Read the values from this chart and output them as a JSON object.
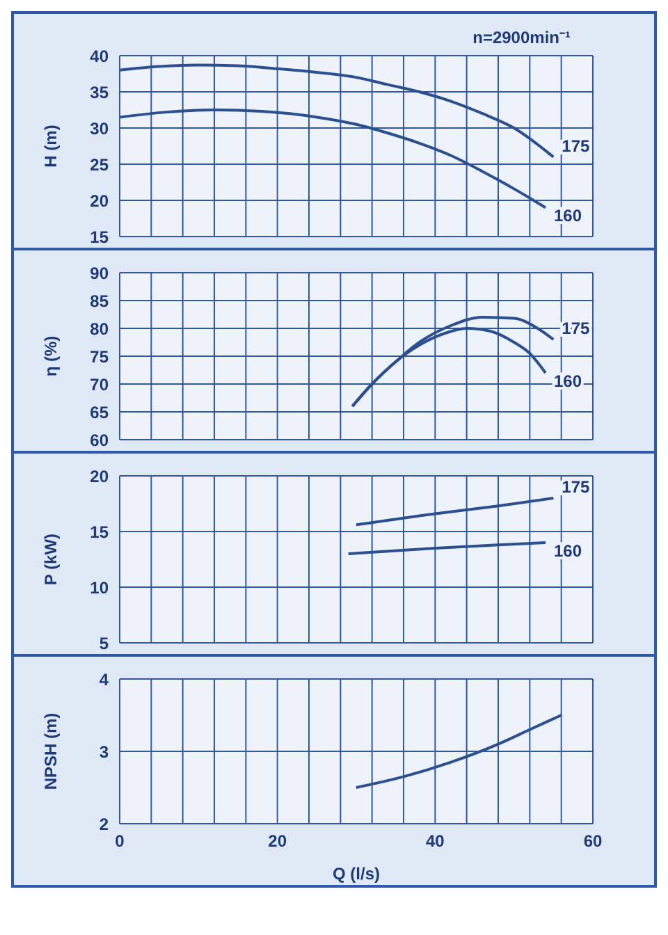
{
  "chart_data": [
    {
      "type": "line",
      "ylabel": "H (m)",
      "annotations": [
        "n=2900min⁻¹"
      ],
      "xlim": [
        0,
        60
      ],
      "xticks": [
        0,
        {
          "value": 4,
          "label": null
        },
        {
          "value": 8,
          "label": null
        },
        {
          "value": 12,
          "label": null
        },
        {
          "value": 16,
          "label": null
        },
        20,
        {
          "value": 24,
          "label": null
        },
        {
          "value": 28,
          "label": null
        },
        {
          "value": 32,
          "label": null
        },
        {
          "value": 36,
          "label": null
        },
        40,
        {
          "value": 44,
          "label": null
        },
        {
          "value": 48,
          "label": null
        },
        {
          "value": 52,
          "label": null
        },
        {
          "value": 56,
          "label": null
        },
        60
      ],
      "ylim": [
        15,
        40
      ],
      "yticks": [
        15,
        20,
        25,
        30,
        35,
        40
      ],
      "grid": true,
      "tick_labels": "y",
      "marker": "none",
      "series": [
        {
          "name": "175",
          "color": "#2b4f8f",
          "x": [
            0,
            5,
            10,
            15,
            20,
            25,
            30,
            34,
            38,
            42,
            46,
            50,
            55
          ],
          "values": [
            38,
            38.5,
            38.7,
            38.6,
            38.2,
            37.7,
            37,
            36,
            35,
            33.7,
            32,
            30,
            26
          ]
        },
        {
          "name": "160",
          "color": "#2b4f8f",
          "x": [
            0,
            6,
            12,
            18,
            25,
            30,
            34,
            38,
            42,
            46,
            50,
            54
          ],
          "values": [
            31.5,
            32.2,
            32.5,
            32.3,
            31.5,
            30.5,
            29.3,
            27.9,
            26.2,
            24,
            21.6,
            19
          ]
        }
      ]
    },
    {
      "type": "line",
      "ylabel": "η (%)",
      "xlim": [
        0,
        60
      ],
      "xticks": [
        0,
        {
          "value": 4,
          "label": null
        },
        {
          "value": 8,
          "label": null
        },
        {
          "value": 12,
          "label": null
        },
        {
          "value": 16,
          "label": null
        },
        20,
        {
          "value": 24,
          "label": null
        },
        {
          "value": 28,
          "label": null
        },
        {
          "value": 32,
          "label": null
        },
        {
          "value": 36,
          "label": null
        },
        40,
        {
          "value": 44,
          "label": null
        },
        {
          "value": 48,
          "label": null
        },
        {
          "value": 52,
          "label": null
        },
        {
          "value": 56,
          "label": null
        },
        60
      ],
      "ylim": [
        60,
        90
      ],
      "yticks": [
        60,
        65,
        70,
        75,
        80,
        85,
        90
      ],
      "grid": true,
      "tick_labels": "y",
      "marker": "none",
      "series": [
        {
          "name": "175",
          "color": "#2b4f8f",
          "x": [
            29.5,
            32,
            35,
            38,
            42,
            46,
            50,
            53,
            55
          ],
          "values": [
            66,
            70,
            74,
            77.5,
            80.5,
            82,
            81.8,
            80,
            78
          ]
        },
        {
          "name": "160",
          "color": "#2b4f8f",
          "x": [
            29.5,
            32,
            35,
            38,
            41,
            44,
            47,
            50,
            52,
            54
          ],
          "values": [
            66,
            70,
            74,
            77,
            79,
            80,
            79.5,
            77.5,
            75.5,
            72
          ]
        }
      ]
    },
    {
      "type": "line",
      "ylabel": "P (kW)",
      "xlim": [
        0,
        60
      ],
      "xticks": [
        0,
        {
          "value": 4,
          "label": null
        },
        {
          "value": 8,
          "label": null
        },
        {
          "value": 12,
          "label": null
        },
        {
          "value": 16,
          "label": null
        },
        20,
        {
          "value": 24,
          "label": null
        },
        {
          "value": 28,
          "label": null
        },
        {
          "value": 32,
          "label": null
        },
        {
          "value": 36,
          "label": null
        },
        40,
        {
          "value": 44,
          "label": null
        },
        {
          "value": 48,
          "label": null
        },
        {
          "value": 52,
          "label": null
        },
        {
          "value": 56,
          "label": null
        },
        60
      ],
      "ylim": [
        5,
        20
      ],
      "yticks": [
        5,
        10,
        15,
        20
      ],
      "grid": true,
      "tick_labels": "y",
      "marker": "none",
      "series": [
        {
          "name": "175",
          "color": "#2b4f8f",
          "x": [
            30,
            40,
            48,
            55
          ],
          "values": [
            15.6,
            16.6,
            17.3,
            18
          ]
        },
        {
          "name": "160",
          "color": "#2b4f8f",
          "x": [
            29,
            40,
            48,
            54
          ],
          "values": [
            13,
            13.5,
            13.8,
            14
          ]
        }
      ]
    },
    {
      "type": "line",
      "ylabel": "NPSH (m)",
      "xlabel": "Q (l/s)",
      "xlim": [
        0,
        60
      ],
      "xticks": [
        0,
        {
          "value": 4,
          "label": null
        },
        {
          "value": 8,
          "label": null
        },
        {
          "value": 12,
          "label": null
        },
        {
          "value": 16,
          "label": null
        },
        20,
        {
          "value": 24,
          "label": null
        },
        {
          "value": 28,
          "label": null
        },
        {
          "value": 32,
          "label": null
        },
        {
          "value": 36,
          "label": null
        },
        40,
        {
          "value": 44,
          "label": null
        },
        {
          "value": 48,
          "label": null
        },
        {
          "value": 52,
          "label": null
        },
        {
          "value": 56,
          "label": null
        },
        60
      ],
      "ylim": [
        2,
        4
      ],
      "yticks": [
        2,
        3,
        4
      ],
      "grid": true,
      "marker": "none",
      "series": [
        {
          "color": "#2b4f8f",
          "x": [
            30,
            36,
            42,
            48,
            52,
            56
          ],
          "values": [
            2.5,
            2.65,
            2.85,
            3.1,
            3.3,
            3.5
          ]
        }
      ]
    }
  ]
}
